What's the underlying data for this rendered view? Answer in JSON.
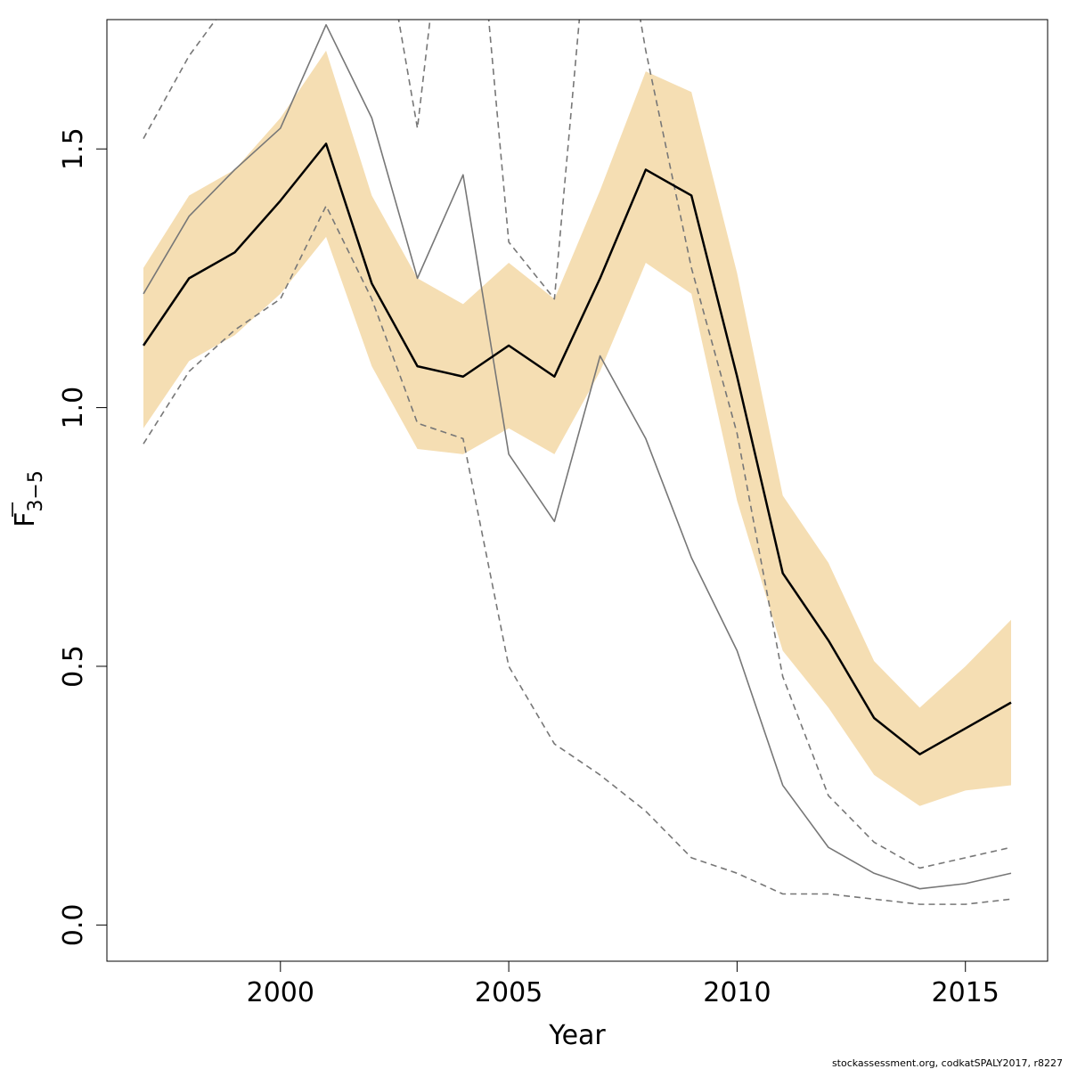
{
  "chart_data": {
    "type": "line",
    "title": "",
    "xlabel": "Year",
    "ylabel": {
      "main": "F",
      "subscript": "3−5",
      "overbar": true
    },
    "xlim": [
      1996.2,
      2016.8
    ],
    "ylim": [
      -0.07,
      1.75
    ],
    "xticks": [
      2000,
      2005,
      2010,
      2015
    ],
    "yticks": [
      0.0,
      0.5,
      1.0,
      1.5
    ],
    "ytick_labels": [
      "0.0",
      "0.5",
      "1.0",
      "1.5"
    ],
    "grid": false,
    "legend": "none",
    "years": [
      1997,
      1998,
      1999,
      2000,
      2001,
      2002,
      2003,
      2004,
      2005,
      2006,
      2007,
      2008,
      2009,
      2010,
      2011,
      2012,
      2013,
      2014,
      2015,
      2016
    ],
    "series": [
      {
        "role": "confidence_band",
        "style": "band",
        "color": "#f5deb3",
        "lower": [
          0.96,
          1.09,
          1.14,
          1.22,
          1.33,
          1.08,
          0.92,
          0.91,
          0.96,
          0.91,
          1.07,
          1.28,
          1.22,
          0.82,
          0.53,
          0.42,
          0.29,
          0.23,
          0.26,
          0.27
        ],
        "upper": [
          1.27,
          1.41,
          1.46,
          1.56,
          1.69,
          1.41,
          1.25,
          1.2,
          1.28,
          1.21,
          1.42,
          1.65,
          1.61,
          1.26,
          0.83,
          0.7,
          0.51,
          0.42,
          0.5,
          0.59
        ]
      },
      {
        "role": "estimate",
        "style": "solid",
        "color": "#000000",
        "width": 2.5,
        "values": [
          1.12,
          1.25,
          1.3,
          1.4,
          1.51,
          1.24,
          1.08,
          1.06,
          1.12,
          1.06,
          1.25,
          1.46,
          1.41,
          1.06,
          0.68,
          0.55,
          0.4,
          0.33,
          0.38,
          0.43
        ]
      },
      {
        "role": "comparison_1",
        "style": "solid",
        "color": "#777777",
        "width": 1.6,
        "values": [
          1.22,
          1.37,
          1.46,
          1.54,
          1.74,
          1.56,
          1.25,
          1.45,
          0.91,
          0.78,
          1.1,
          0.94,
          0.71,
          0.53,
          0.27,
          0.15,
          0.1,
          0.07,
          0.08,
          0.1
        ]
      },
      {
        "role": "comparison_2",
        "style": "dashed",
        "color": "#777777",
        "width": 1.6,
        "values": [
          0.93,
          1.07,
          1.15,
          1.21,
          1.39,
          1.21,
          0.97,
          0.94,
          0.5,
          0.35,
          0.29,
          0.22,
          0.13,
          0.1,
          0.06,
          0.06,
          0.05,
          0.04,
          0.04,
          0.05
        ]
      },
      {
        "role": "comparison_3",
        "style": "dashed",
        "color": "#777777",
        "width": 1.6,
        "values": [
          1.52,
          1.68,
          1.8,
          2.0,
          2.3,
          2.05,
          1.54,
          2.3,
          1.32,
          1.21,
          2.2,
          1.69,
          1.27,
          0.95,
          0.48,
          0.25,
          0.16,
          0.11,
          0.13,
          0.15
        ]
      }
    ],
    "footnote": "stockassessment.org, codkatSPALY2017, r8227"
  }
}
